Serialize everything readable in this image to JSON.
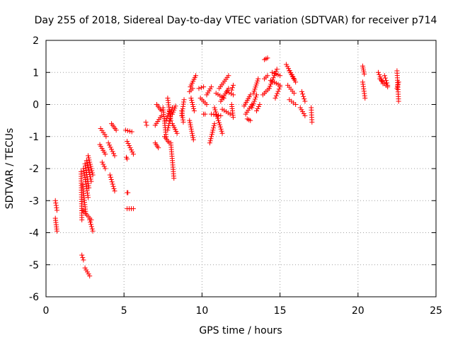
{
  "chart_data": {
    "type": "scatter",
    "title": "Day 255 of 2018, Sidereal Day-to-day VTEC variation (SDTVAR) for receiver p714",
    "xlabel": "GPS time / hours",
    "ylabel": "SDTVAR / TECUs",
    "xlim": [
      0,
      25
    ],
    "ylim": [
      -6,
      2
    ],
    "x_ticks": [
      0,
      5,
      10,
      15,
      20,
      25
    ],
    "y_ticks": [
      -6,
      -5,
      -4,
      -3,
      -2,
      -1,
      0,
      1,
      2
    ],
    "x_tick_labels": [
      "0",
      "5",
      "10",
      "15",
      "20",
      "25"
    ],
    "y_tick_labels": [
      "-6",
      "-5",
      "-4",
      "-3",
      "-2",
      "-1",
      "0",
      "1",
      "2"
    ],
    "grid": true,
    "marker": "+",
    "marker_color": "#ff0000",
    "series": [
      {
        "name": "SDTVAR",
        "segments": [
          {
            "x0": 0.6,
            "y0": -3.0,
            "x1": 0.7,
            "y1": -3.3
          },
          {
            "x0": 0.6,
            "y0": -3.55,
            "x1": 0.7,
            "y1": -3.95
          },
          {
            "x0": 2.3,
            "y0": -4.7,
            "x1": 2.4,
            "y1": -4.85
          },
          {
            "x0": 2.5,
            "y0": -5.1,
            "x1": 2.8,
            "y1": -5.35
          },
          {
            "x0": 2.25,
            "y0": -2.1,
            "x1": 2.3,
            "y1": -3.6
          },
          {
            "x0": 2.35,
            "y0": -2.5,
            "x1": 2.55,
            "y1": -3.4
          },
          {
            "x0": 2.4,
            "y0": -2.0,
            "x1": 2.7,
            "y1": -2.9
          },
          {
            "x0": 2.5,
            "y0": -1.85,
            "x1": 2.75,
            "y1": -2.6
          },
          {
            "x0": 2.6,
            "y0": -1.75,
            "x1": 2.9,
            "y1": -2.4
          },
          {
            "x0": 2.7,
            "y0": -1.6,
            "x1": 3.0,
            "y1": -2.2
          },
          {
            "x0": 2.35,
            "y0": -3.3,
            "x1": 2.9,
            "y1": -3.6
          },
          {
            "x0": 2.8,
            "y0": -3.6,
            "x1": 3.0,
            "y1": -3.95
          },
          {
            "x0": 3.5,
            "y0": -0.75,
            "x1": 3.85,
            "y1": -1.0
          },
          {
            "x0": 3.45,
            "y0": -1.25,
            "x1": 3.8,
            "y1": -1.55
          },
          {
            "x0": 3.6,
            "y0": -1.8,
            "x1": 3.8,
            "y1": -2.0
          },
          {
            "x0": 4.0,
            "y0": -1.2,
            "x1": 4.4,
            "y1": -1.6
          },
          {
            "x0": 4.2,
            "y0": -0.6,
            "x1": 4.5,
            "y1": -0.8
          },
          {
            "x0": 4.1,
            "y0": -2.2,
            "x1": 4.4,
            "y1": -2.7
          },
          {
            "x0": 5.1,
            "y0": -0.8,
            "x1": 5.5,
            "y1": -0.85
          },
          {
            "x0": 5.2,
            "y0": -1.15,
            "x1": 5.6,
            "y1": -1.55
          },
          {
            "x0": 5.15,
            "y0": -1.65,
            "x1": 5.2,
            "y1": -1.7
          },
          {
            "x0": 5.2,
            "y0": -2.75,
            "x1": 5.25,
            "y1": -2.75
          },
          {
            "x0": 5.2,
            "y0": -3.25,
            "x1": 5.6,
            "y1": -3.25
          },
          {
            "x0": 6.4,
            "y0": -0.55,
            "x1": 6.45,
            "y1": -0.65
          },
          {
            "x0": 7.0,
            "y0": -1.2,
            "x1": 7.2,
            "y1": -1.35
          },
          {
            "x0": 7.0,
            "y0": -0.65,
            "x1": 7.4,
            "y1": -0.35
          },
          {
            "x0": 7.1,
            "y0": 0.0,
            "x1": 7.4,
            "y1": -0.2
          },
          {
            "x0": 7.5,
            "y0": -0.1,
            "x1": 7.7,
            "y1": -1.0
          },
          {
            "x0": 7.7,
            "y0": -0.5,
            "x1": 7.9,
            "y1": -0.2
          },
          {
            "x0": 7.6,
            "y0": -1.0,
            "x1": 7.9,
            "y1": -1.2
          },
          {
            "x0": 7.8,
            "y0": -0.8,
            "x1": 8.1,
            "y1": -0.1
          },
          {
            "x0": 7.8,
            "y0": 0.2,
            "x1": 8.0,
            "y1": -0.5
          },
          {
            "x0": 8.0,
            "y0": -1.2,
            "x1": 8.2,
            "y1": -2.3
          },
          {
            "x0": 8.1,
            "y0": -0.3,
            "x1": 8.3,
            "y1": -0.05
          },
          {
            "x0": 8.1,
            "y0": -0.6,
            "x1": 8.4,
            "y1": -0.9
          },
          {
            "x0": 8.7,
            "y0": -0.35,
            "x1": 8.85,
            "y1": 0.15
          },
          {
            "x0": 8.7,
            "y0": -0.2,
            "x1": 8.8,
            "y1": -0.55
          },
          {
            "x0": 9.2,
            "y0": -0.5,
            "x1": 9.45,
            "y1": -1.1
          },
          {
            "x0": 9.25,
            "y0": 0.55,
            "x1": 9.6,
            "y1": 0.9
          },
          {
            "x0": 9.2,
            "y0": 0.4,
            "x1": 9.4,
            "y1": 0.5
          },
          {
            "x0": 9.3,
            "y0": 0.2,
            "x1": 9.5,
            "y1": -0.2
          },
          {
            "x0": 9.8,
            "y0": 0.5,
            "x1": 10.1,
            "y1": 0.55
          },
          {
            "x0": 9.9,
            "y0": 0.2,
            "x1": 10.3,
            "y1": 0.0
          },
          {
            "x0": 10.1,
            "y0": -0.3,
            "x1": 10.2,
            "y1": -0.3
          },
          {
            "x0": 10.3,
            "y0": 0.3,
            "x1": 10.6,
            "y1": 0.55
          },
          {
            "x0": 10.5,
            "y0": -1.2,
            "x1": 10.8,
            "y1": -0.6
          },
          {
            "x0": 10.6,
            "y0": -0.3,
            "x1": 11.2,
            "y1": -0.35
          },
          {
            "x0": 10.8,
            "y0": -0.1,
            "x1": 11.3,
            "y1": -0.9
          },
          {
            "x0": 10.9,
            "y0": 0.35,
            "x1": 11.4,
            "y1": 0.2
          },
          {
            "x0": 11.1,
            "y0": 0.5,
            "x1": 11.7,
            "y1": 0.9
          },
          {
            "x0": 11.2,
            "y0": 0.1,
            "x1": 11.7,
            "y1": 0.5
          },
          {
            "x0": 11.3,
            "y0": -0.15,
            "x1": 11.8,
            "y1": -0.3
          },
          {
            "x0": 11.6,
            "y0": 0.4,
            "x1": 12.0,
            "y1": 0.3
          },
          {
            "x0": 11.9,
            "y0": 0.45,
            "x1": 12.0,
            "y1": 0.6
          },
          {
            "x0": 11.9,
            "y0": 0.0,
            "x1": 12.0,
            "y1": -0.4
          },
          {
            "x0": 12.7,
            "y0": -0.05,
            "x1": 13.1,
            "y1": 0.3
          },
          {
            "x0": 12.8,
            "y0": -0.3,
            "x1": 13.2,
            "y1": 0.0
          },
          {
            "x0": 12.9,
            "y0": -0.45,
            "x1": 13.1,
            "y1": -0.5
          },
          {
            "x0": 13.2,
            "y0": -0.1,
            "x1": 13.5,
            "y1": 0.3
          },
          {
            "x0": 13.3,
            "y0": 0.35,
            "x1": 13.6,
            "y1": 0.8
          },
          {
            "x0": 13.5,
            "y0": -0.2,
            "x1": 13.7,
            "y1": 0.0
          },
          {
            "x0": 13.9,
            "y0": 0.3,
            "x1": 14.3,
            "y1": 0.5
          },
          {
            "x0": 14.0,
            "y0": 1.4,
            "x1": 14.2,
            "y1": 1.45
          },
          {
            "x0": 14.0,
            "y0": 0.8,
            "x1": 14.2,
            "y1": 0.9
          },
          {
            "x0": 14.3,
            "y0": 0.5,
            "x1": 14.8,
            "y1": 1.1
          },
          {
            "x0": 14.4,
            "y0": 0.75,
            "x1": 15.0,
            "y1": 0.6
          },
          {
            "x0": 14.5,
            "y0": 1.0,
            "x1": 15.0,
            "y1": 0.9
          },
          {
            "x0": 14.7,
            "y0": 0.2,
            "x1": 15.0,
            "y1": 0.55
          },
          {
            "x0": 15.4,
            "y0": 1.25,
            "x1": 15.9,
            "y1": 0.8
          },
          {
            "x0": 15.5,
            "y0": 0.6,
            "x1": 15.9,
            "y1": 0.35
          },
          {
            "x0": 15.6,
            "y0": 1.05,
            "x1": 16.0,
            "y1": 0.7
          },
          {
            "x0": 15.6,
            "y0": 0.15,
            "x1": 16.0,
            "y1": 0.0
          },
          {
            "x0": 16.4,
            "y0": 0.4,
            "x1": 16.6,
            "y1": 0.1
          },
          {
            "x0": 16.3,
            "y0": -0.1,
            "x1": 16.6,
            "y1": -0.35
          },
          {
            "x0": 17.0,
            "y0": -0.1,
            "x1": 17.05,
            "y1": -0.55
          },
          {
            "x0": 20.3,
            "y0": 1.2,
            "x1": 20.4,
            "y1": 0.95
          },
          {
            "x0": 20.3,
            "y0": 0.7,
            "x1": 20.45,
            "y1": 0.2
          },
          {
            "x0": 21.3,
            "y0": 1.0,
            "x1": 21.6,
            "y1": 0.65
          },
          {
            "x0": 21.4,
            "y0": 0.8,
            "x1": 21.9,
            "y1": 0.55
          },
          {
            "x0": 21.7,
            "y0": 0.9,
            "x1": 21.9,
            "y1": 0.6
          },
          {
            "x0": 22.5,
            "y0": 1.05,
            "x1": 22.6,
            "y1": 0.1
          },
          {
            "x0": 22.5,
            "y0": 0.5,
            "x1": 22.6,
            "y1": 0.7
          }
        ]
      }
    ]
  }
}
